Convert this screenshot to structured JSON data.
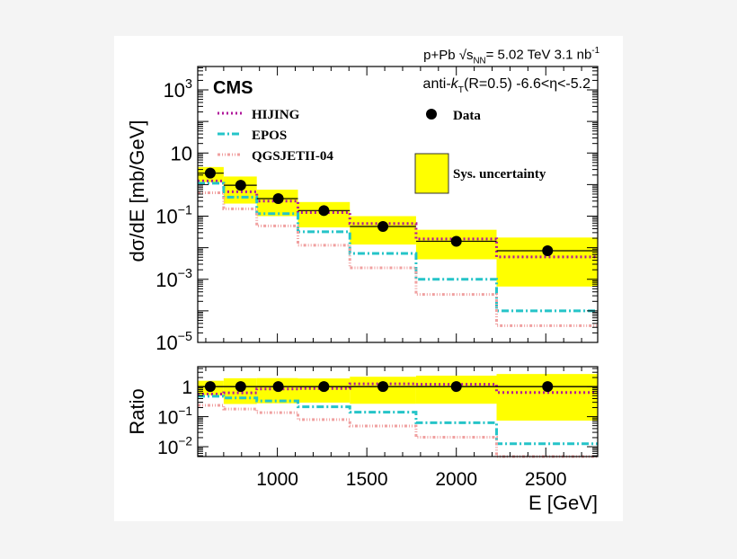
{
  "chart_data": [
    {
      "type": "line",
      "panel": "top",
      "header": {
        "system": "p+Pb",
        "energy_prefix": "s",
        "energy_sub": "NN",
        "energy_value": "= 5.02 TeV",
        "lumi": "3.1 nb",
        "lumi_exp": "-1"
      },
      "experiment": "CMS",
      "jet_label": {
        "pre": "anti-",
        "k": "k",
        "sub": "T",
        "post": "(R=0.5) -6.6<η<-5.2"
      },
      "ylabel": "dσ/dE [mb/GeV]",
      "yscale": "log",
      "ylim": [
        1e-05,
        5500
      ],
      "y_ticks": [
        {
          "base": "10",
          "exp": "3",
          "v": 1000
        },
        {
          "base": "10",
          "exp": "",
          "v": 10
        },
        {
          "base": "10",
          "exp": "−1",
          "v": 0.1
        },
        {
          "base": "10",
          "exp": "−3",
          "v": 0.001
        },
        {
          "base": "10",
          "exp": "−5",
          "v": 1e-05
        }
      ],
      "xlim": [
        555,
        2790
      ],
      "bin_edges": [
        555,
        700,
        885,
        1115,
        1405,
        1775,
        2225,
        2790
      ],
      "data": {
        "name": "Data",
        "x": [
          625,
          795,
          1005,
          1260,
          1590,
          2000,
          2510
        ],
        "y": [
          2.3,
          0.95,
          0.36,
          0.15,
          0.047,
          0.016,
          0.008
        ],
        "color": "#000000"
      },
      "sys_uncertainty": {
        "name": "Sys. uncertainty",
        "low": [
          1.2,
          0.25,
          0.1,
          0.044,
          0.0126,
          0.0043,
          0.00059
        ],
        "high": [
          3.6,
          1.8,
          0.69,
          0.28,
          0.1,
          0.037,
          0.021
        ],
        "color": "#ffff00"
      },
      "series": [
        {
          "name": "HIJING",
          "values": [
            1.3,
            0.59,
            0.3,
            0.13,
            0.058,
            0.019,
            0.0051
          ],
          "color": "#b0189b",
          "dash": "2,3"
        },
        {
          "name": "EPOS",
          "values": [
            1.1,
            0.4,
            0.12,
            0.032,
            0.0066,
            0.001,
            0.0001
          ],
          "color": "#25c4c8",
          "dash": "8,3,2,3"
        },
        {
          "name": "QGSJETII-04",
          "values": [
            0.55,
            0.17,
            0.049,
            0.012,
            0.0023,
            0.00033,
            3.4e-05
          ],
          "color": "#f0a0a0",
          "dash": "3,2,1,2,1,2"
        }
      ],
      "grid": false,
      "legend": "top-left"
    },
    {
      "type": "line",
      "panel": "bottom",
      "ylabel": "Ratio",
      "xlabel": "E [GeV]",
      "yscale": "log",
      "ylim": [
        0.0047,
        4.6
      ],
      "y_ticks": [
        {
          "base": "1",
          "exp": "",
          "v": 1
        },
        {
          "base": "10",
          "exp": "−1",
          "v": 0.1
        },
        {
          "base": "10",
          "exp": "−2",
          "v": 0.01
        }
      ],
      "x_ticks": [
        1000,
        1500,
        2000,
        2500
      ],
      "note": ""
    }
  ]
}
